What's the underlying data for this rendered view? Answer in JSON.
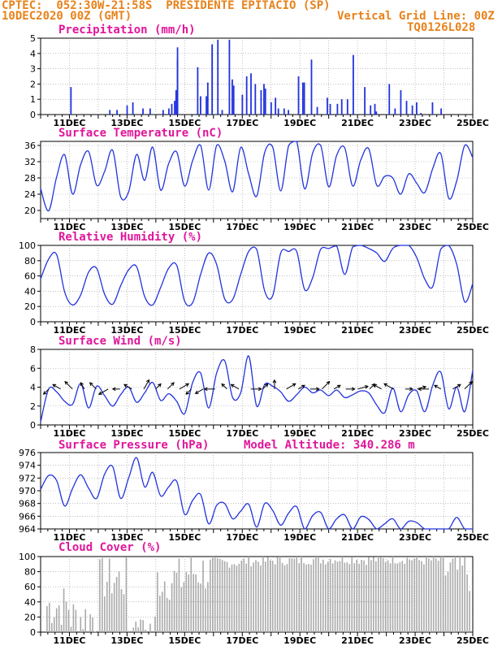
{
  "header": {
    "line1": "CPTEC:  052:30W-21:58S  PRESIDENTE EPITACIO (SP)",
    "line2_left": "10DEC2020 00Z (GMT)",
    "line2_right": "Vertical Grid Line: 00Z",
    "line3_right": "TQ0126L028"
  },
  "day_labels": [
    "11DEC",
    "13DEC",
    "15DEC",
    "17DEC",
    "19DEC",
    "21DEC",
    "23DEC",
    "25DEC"
  ],
  "colors": {
    "series": "#2233dd",
    "arrow": "#000000",
    "cloud": "#aaaaaa",
    "title": "#e0169a",
    "header": "#e8821a"
  },
  "chart_data": [
    {
      "id": "precip",
      "type": "bar",
      "title": "Precipitation (mm/h)",
      "ylim": [
        0,
        5
      ],
      "yticks": [
        0,
        1,
        2,
        3,
        4,
        5
      ],
      "x_start": "10DEC2020 00Z",
      "x_end": "25DEC2020 00Z",
      "values_daily_max": [
        0,
        0,
        1.8,
        0,
        0,
        0,
        0.5,
        0.9,
        0.6,
        0.7,
        4.4,
        4.9,
        3.5,
        3.6,
        0.5
      ],
      "events": [
        [
          2.1,
          1.8
        ],
        [
          4.8,
          0.3
        ],
        [
          5.3,
          0.3
        ],
        [
          6.0,
          0.6
        ],
        [
          6.4,
          0.8
        ],
        [
          7.1,
          0.4
        ],
        [
          7.6,
          0.4
        ],
        [
          8.5,
          0.3
        ],
        [
          8.9,
          0.4
        ],
        [
          9.1,
          0.7
        ],
        [
          9.3,
          0.9
        ],
        [
          9.4,
          1.6
        ],
        [
          9.5,
          3.6
        ],
        [
          9.5,
          4.4
        ],
        [
          10.9,
          3.1
        ],
        [
          11.1,
          1.2
        ],
        [
          11.5,
          1.2
        ],
        [
          11.6,
          2.1
        ],
        [
          11.9,
          4.6
        ],
        [
          12.3,
          4.9
        ],
        [
          12.6,
          0.3
        ],
        [
          13.1,
          4.9
        ],
        [
          13.3,
          2.3
        ],
        [
          13.4,
          1.9
        ],
        [
          14.0,
          1.3
        ],
        [
          14.3,
          2.5
        ],
        [
          14.6,
          2.7
        ],
        [
          14.9,
          2.0
        ],
        [
          15.3,
          1.6
        ],
        [
          15.5,
          2.0
        ],
        [
          15.6,
          1.7
        ],
        [
          16.0,
          0.8
        ],
        [
          16.3,
          1.1
        ],
        [
          16.5,
          0.4
        ],
        [
          16.9,
          0.4
        ],
        [
          17.2,
          0.3
        ],
        [
          17.9,
          2.5
        ],
        [
          18.2,
          2.1
        ],
        [
          18.3,
          2.1
        ],
        [
          18.8,
          3.6
        ],
        [
          19.2,
          0.5
        ],
        [
          19.9,
          1.1
        ],
        [
          20.1,
          0.7
        ],
        [
          20.6,
          0.7
        ],
        [
          20.9,
          1.0
        ],
        [
          21.3,
          1.0
        ],
        [
          21.7,
          3.9
        ],
        [
          22.5,
          1.8
        ],
        [
          22.9,
          0.6
        ],
        [
          23.2,
          0.7
        ],
        [
          23.3,
          0.2
        ],
        [
          24.2,
          2.0
        ],
        [
          24.6,
          0.4
        ],
        [
          25.0,
          1.6
        ],
        [
          25.4,
          0.9
        ],
        [
          25.8,
          0.6
        ],
        [
          26.1,
          0.8
        ],
        [
          26.4,
          0.1
        ],
        [
          27.2,
          0.8
        ],
        [
          27.8,
          0.4
        ]
      ]
    },
    {
      "id": "temp",
      "type": "line",
      "title": "Surface Temperature (nC)",
      "ylim": [
        18,
        37
      ],
      "yticks": [
        20,
        24,
        28,
        32,
        36
      ],
      "series": [
        {
          "values": [
            25.4,
            19.9,
            28.2,
            33.7,
            24.0,
            31.3,
            34.5,
            26.2,
            29.6,
            34.8,
            23.4,
            24.6,
            33.8,
            27.4,
            35.6,
            25.0,
            31.5,
            34.4,
            26.0,
            32.3,
            36.0,
            25.0,
            36.0,
            32.2,
            24.6,
            35.5,
            29.0,
            23.5,
            34.3,
            35.6,
            24.8,
            36.0,
            37.0,
            25.3,
            34.2,
            36.0,
            25.8,
            33.6,
            35.4,
            26.0,
            32.4,
            35.2,
            26.2,
            28.4,
            28.0,
            24.0,
            29.0,
            26.7,
            24.4,
            30.3,
            34.0,
            23.0,
            27.3,
            36.0,
            33.0
          ]
        }
      ]
    },
    {
      "id": "rh",
      "type": "line",
      "title": "Relative Humidity (%)",
      "ylim": [
        0,
        100
      ],
      "yticks": [
        0,
        20,
        40,
        60,
        80,
        100
      ],
      "series": [
        {
          "values": [
            56,
            82,
            88,
            39,
            22,
            35,
            65,
            70,
            36,
            23,
            47,
            68,
            72,
            33,
            22,
            45,
            70,
            74,
            27,
            25,
            62,
            90,
            75,
            30,
            29,
            62,
            92,
            95,
            40,
            34,
            90,
            92,
            92,
            42,
            58,
            95,
            96,
            99,
            62,
            98,
            100,
            96,
            90,
            79,
            96,
            100,
            100,
            84,
            56,
            46,
            95,
            100,
            75,
            26,
            50
          ]
        }
      ]
    },
    {
      "id": "wind",
      "type": "line",
      "title": "Surface Wind (m/s)",
      "ylim": [
        0,
        8
      ],
      "yticks": [
        0,
        2,
        4,
        6,
        8
      ],
      "series": [
        {
          "values": [
            0.3,
            3.8,
            3.5,
            2.5,
            2.2,
            4.4,
            1.8,
            4.1,
            3.1,
            2.0,
            3.2,
            4.0,
            2.4,
            3.4,
            4.5,
            2.6,
            3.3,
            2.5,
            1.2,
            4.5,
            5.5,
            1.8,
            5.5,
            6.8,
            2.9,
            3.4,
            7.3,
            2.0,
            4.3,
            4.1,
            3.5,
            2.5,
            3.2,
            4.0,
            3.4,
            3.7,
            3.1,
            3.7,
            2.9,
            3.2,
            3.6,
            3.4,
            2.1,
            1.3,
            3.9,
            1.4,
            3.2,
            3.6,
            1.4,
            4.2,
            5.6,
            1.7,
            4.0,
            1.4,
            5.8
          ]
        }
      ],
      "arrows_dir_deg": [
        225,
        300,
        315,
        330,
        315,
        240,
        270,
        300,
        30,
        45,
        45,
        60,
        225,
        240,
        270,
        315,
        300,
        90,
        45,
        0,
        60,
        60,
        90,
        45,
        60,
        90,
        75,
        45,
        300,
        300,
        90,
        75,
        270,
        300,
        60,
        45
      ]
    },
    {
      "id": "pres",
      "type": "line",
      "title": "Surface Pressure (hPa)",
      "subtitle": "Model Altitude: 340.286 m",
      "ylim": [
        964,
        976
      ],
      "yticks": [
        964,
        966,
        968,
        970,
        972,
        974,
        976
      ],
      "series": [
        {
          "values": [
            970.2,
            972.4,
            971.6,
            967.6,
            970.4,
            972.5,
            970.4,
            968.8,
            972.6,
            973.8,
            968.8,
            972.0,
            975.2,
            970.6,
            972.9,
            969.2,
            970.6,
            971.5,
            966.3,
            968.5,
            969.4,
            964.8,
            967.7,
            968.0,
            965.6,
            966.8,
            967.9,
            964.3,
            968.0,
            966.9,
            964.6,
            966.5,
            967.5,
            963.7,
            966.1,
            966.6,
            963.8,
            965.6,
            966.2,
            963.2,
            965.9,
            965.5,
            963.4,
            964.8,
            965.6,
            962.8,
            965.2,
            965.0,
            963.4,
            963.5,
            963.0,
            962.8,
            965.8,
            963.0,
            962.2
          ]
        }
      ]
    },
    {
      "id": "cloud",
      "type": "area",
      "title": "Cloud Cover (%)",
      "ylim": [
        0,
        100
      ],
      "yticks": [
        0,
        20,
        40,
        60,
        80,
        100
      ],
      "daily_mean": [
        35,
        20,
        70,
        5,
        70,
        80,
        92,
        94,
        95,
        96,
        97,
        96,
        97,
        95,
        80
      ]
    }
  ]
}
